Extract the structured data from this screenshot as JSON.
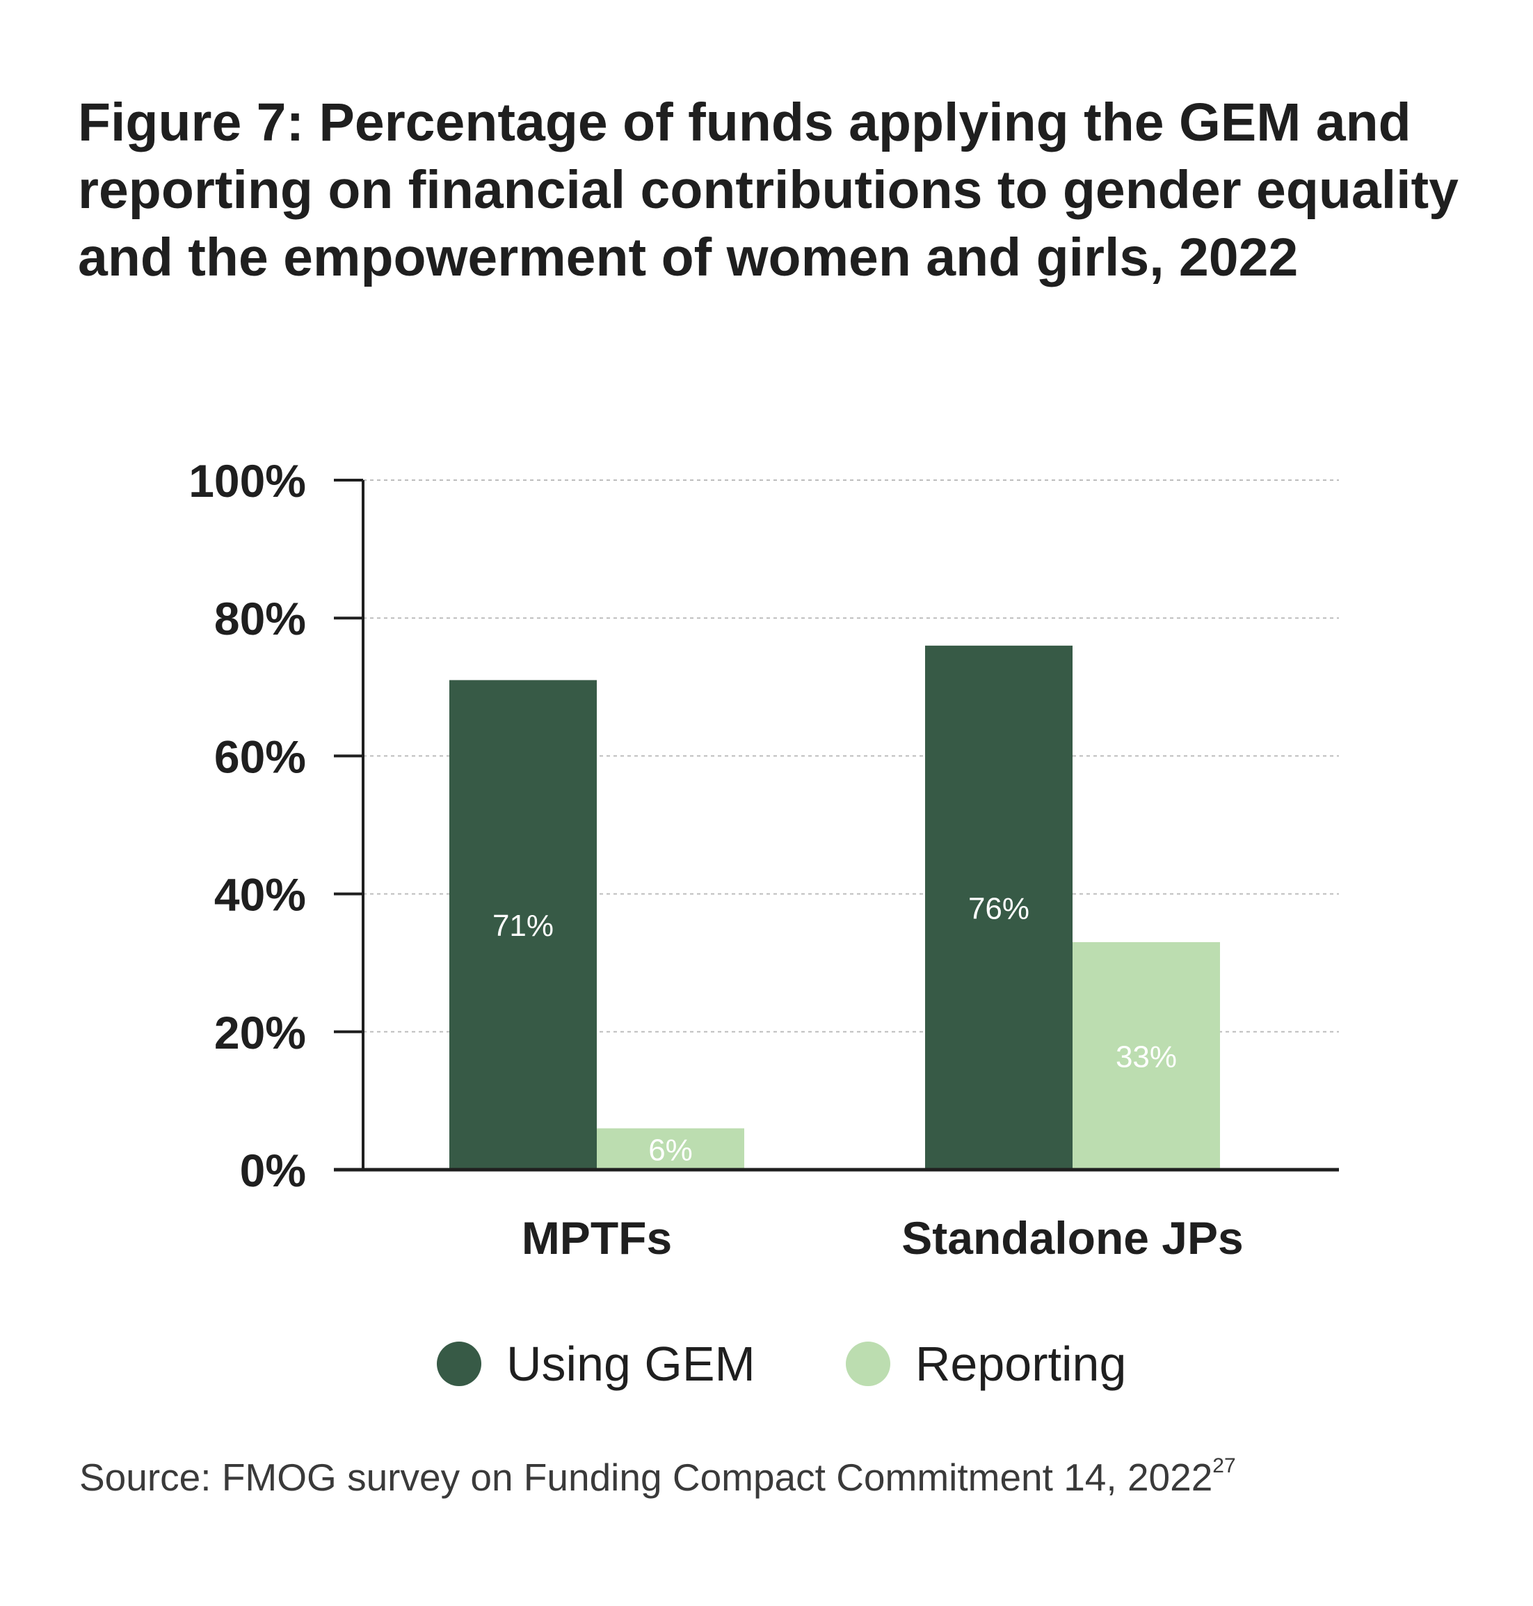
{
  "figure": {
    "title": "Figure 7: Percentage of funds applying the GEM and reporting on financial contributions to gender equality and the empowerment of women and girls, 2022",
    "source": "Source: FMOG survey on Funding Compact Commitment 14, 2022",
    "source_footnote": "27"
  },
  "colors": {
    "using_gem": "#375a46",
    "reporting": "#bcddb0",
    "axis": "#1f1f1f",
    "grid": "#bdbdbd",
    "bar_label_text": "#ffffff"
  },
  "chart_data": {
    "type": "bar",
    "title": "Figure 7: Percentage of funds applying the GEM and reporting on financial contributions to gender equality and the empowerment of women and girls, 2022",
    "categories": [
      "MPTFs",
      "Standalone JPs"
    ],
    "series": [
      {
        "name": "Using GEM",
        "values": [
          71,
          76
        ],
        "labels": [
          "71%",
          "76%"
        ]
      },
      {
        "name": "Reporting",
        "values": [
          6,
          33
        ],
        "labels": [
          "6%",
          "33%"
        ]
      }
    ],
    "ylim": [
      0,
      100
    ],
    "yticks": [
      0,
      20,
      40,
      60,
      80,
      100
    ],
    "ytick_labels": [
      "0%",
      "20%",
      "40%",
      "60%",
      "80%",
      "100%"
    ],
    "xlabel": "",
    "ylabel": "",
    "grid": true,
    "legend_position": "bottom"
  }
}
